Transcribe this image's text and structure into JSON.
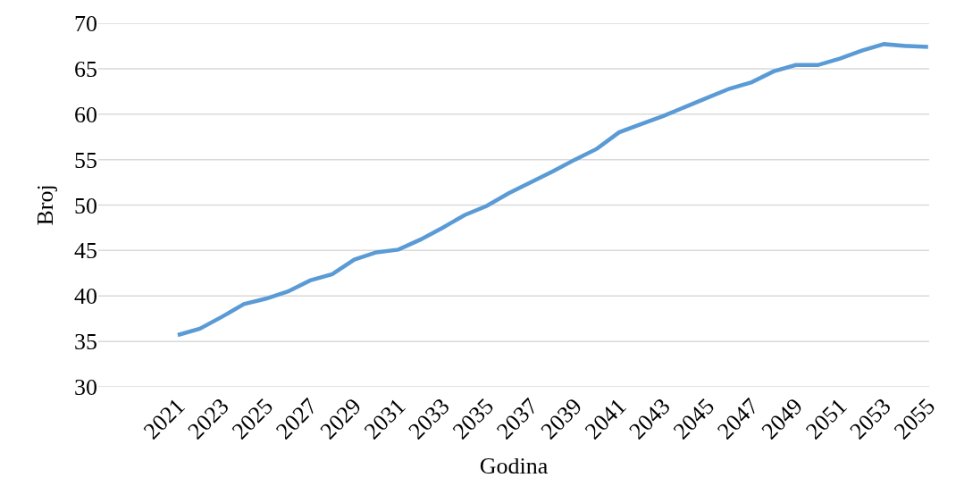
{
  "chart_data": {
    "type": "line",
    "xlabel": "Godina",
    "ylabel": "Broj",
    "categories": [
      "2021",
      null,
      "2023",
      null,
      "2025",
      null,
      "2027",
      null,
      "2029",
      null,
      "2031",
      null,
      "2033",
      null,
      "2035",
      null,
      "2037",
      null,
      "2039",
      null,
      "2041",
      null,
      "2043",
      null,
      "2045",
      null,
      "2047",
      null,
      "2049",
      null,
      "2051",
      null,
      "2053",
      null,
      "2055"
    ],
    "series": [
      {
        "color": "#5b9bd5",
        "values": [
          35.7,
          36.4,
          37.7,
          39.1,
          39.7,
          40.5,
          41.7,
          42.4,
          44.0,
          44.8,
          45.1,
          46.2,
          47.5,
          48.9,
          49.9,
          51.3,
          52.5,
          53.7,
          55.0,
          56.2,
          58.0,
          58.9,
          59.8,
          60.8,
          61.8,
          62.8,
          63.5,
          64.7,
          65.4,
          65.4,
          66.1,
          67.0,
          67.7,
          67.5,
          67.4
        ]
      }
    ],
    "ylim": [
      30,
      70
    ],
    "yticks": [
      30,
      35,
      40,
      45,
      50,
      55,
      60,
      65,
      70
    ],
    "grid": "y",
    "marker": "none",
    "line_style": "solid"
  }
}
